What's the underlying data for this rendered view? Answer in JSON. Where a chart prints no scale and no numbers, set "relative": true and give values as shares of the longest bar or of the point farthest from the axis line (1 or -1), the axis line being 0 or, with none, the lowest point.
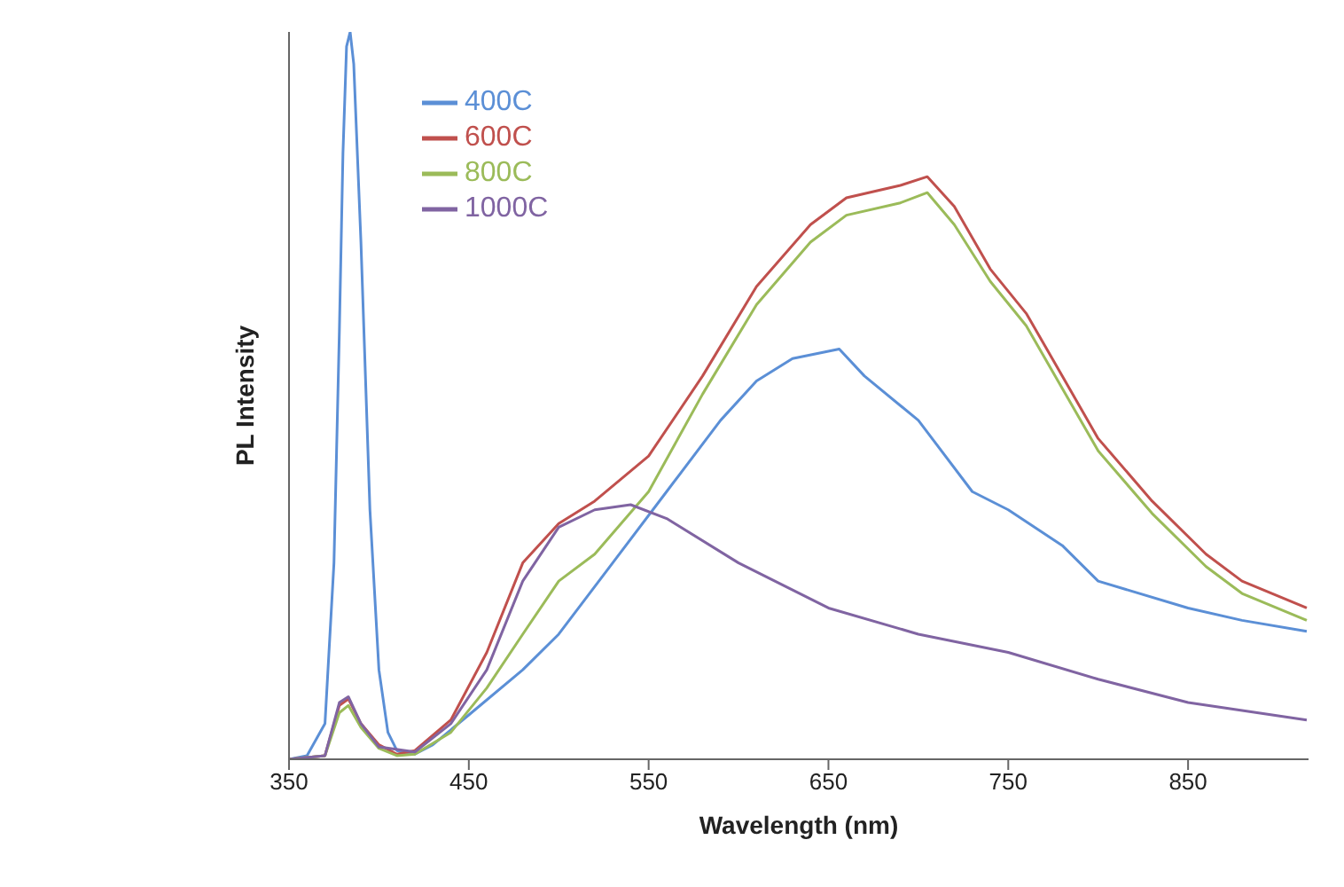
{
  "chart_data": {
    "type": "line",
    "xlabel": "Wavelength (nm)",
    "ylabel": "PL Intensity",
    "relative": true,
    "xlim": [
      350,
      917
    ],
    "xticks": [
      350,
      450,
      550,
      650,
      750,
      850
    ],
    "legend": "top left",
    "grid": false,
    "marker": "none",
    "line_style": "solid",
    "series": [
      {
        "name": "400C",
        "color": "#5b8fd6",
        "x": [
          350,
          360,
          370,
          375,
          378,
          380,
          382,
          384,
          386,
          390,
          395,
          400,
          405,
          410,
          420,
          430,
          450,
          480,
          500,
          530,
          560,
          590,
          610,
          630,
          656,
          670,
          700,
          730,
          750,
          780,
          800,
          850,
          880,
          916
        ],
        "values": [
          0,
          0.005,
          0.049,
          0.27,
          0.588,
          0.833,
          0.98,
          1,
          0.956,
          0.711,
          0.343,
          0.123,
          0.037,
          0.012,
          0.007,
          0.02,
          0.061,
          0.123,
          0.172,
          0.27,
          0.368,
          0.466,
          0.52,
          0.551,
          0.564,
          0.527,
          0.466,
          0.368,
          0.343,
          0.294,
          0.245,
          0.208,
          0.191,
          0.176
        ]
      },
      {
        "name": "600C",
        "color": "#c0504d",
        "x": [
          350,
          370,
          378,
          383,
          390,
          400,
          410,
          420,
          440,
          460,
          480,
          500,
          520,
          550,
          580,
          610,
          640,
          660,
          690,
          705,
          720,
          740,
          760,
          780,
          800,
          830,
          860,
          880,
          916
        ],
        "values": [
          0,
          0.005,
          0.074,
          0.083,
          0.049,
          0.02,
          0.007,
          0.012,
          0.054,
          0.147,
          0.27,
          0.324,
          0.355,
          0.417,
          0.527,
          0.65,
          0.735,
          0.772,
          0.789,
          0.801,
          0.76,
          0.674,
          0.613,
          0.527,
          0.441,
          0.355,
          0.282,
          0.245,
          0.208
        ]
      },
      {
        "name": "800C",
        "color": "#9bbb59",
        "x": [
          350,
          370,
          378,
          383,
          390,
          400,
          410,
          420,
          440,
          460,
          480,
          500,
          520,
          550,
          580,
          610,
          640,
          660,
          690,
          705,
          720,
          740,
          760,
          780,
          800,
          830,
          860,
          880,
          916
        ],
        "values": [
          0,
          0.005,
          0.064,
          0.074,
          0.044,
          0.015,
          0.005,
          0.007,
          0.037,
          0.098,
          0.172,
          0.245,
          0.282,
          0.368,
          0.502,
          0.625,
          0.711,
          0.748,
          0.765,
          0.779,
          0.735,
          0.657,
          0.596,
          0.51,
          0.424,
          0.338,
          0.265,
          0.228,
          0.191
        ]
      },
      {
        "name": "1000C",
        "color": "#8064a2",
        "x": [
          350,
          370,
          378,
          383,
          390,
          400,
          420,
          440,
          460,
          480,
          500,
          520,
          540,
          560,
          600,
          650,
          700,
          750,
          800,
          850,
          916
        ],
        "values": [
          0,
          0.005,
          0.078,
          0.086,
          0.049,
          0.017,
          0.01,
          0.049,
          0.123,
          0.245,
          0.319,
          0.343,
          0.35,
          0.331,
          0.27,
          0.208,
          0.172,
          0.147,
          0.11,
          0.078,
          0.054
        ]
      }
    ]
  }
}
